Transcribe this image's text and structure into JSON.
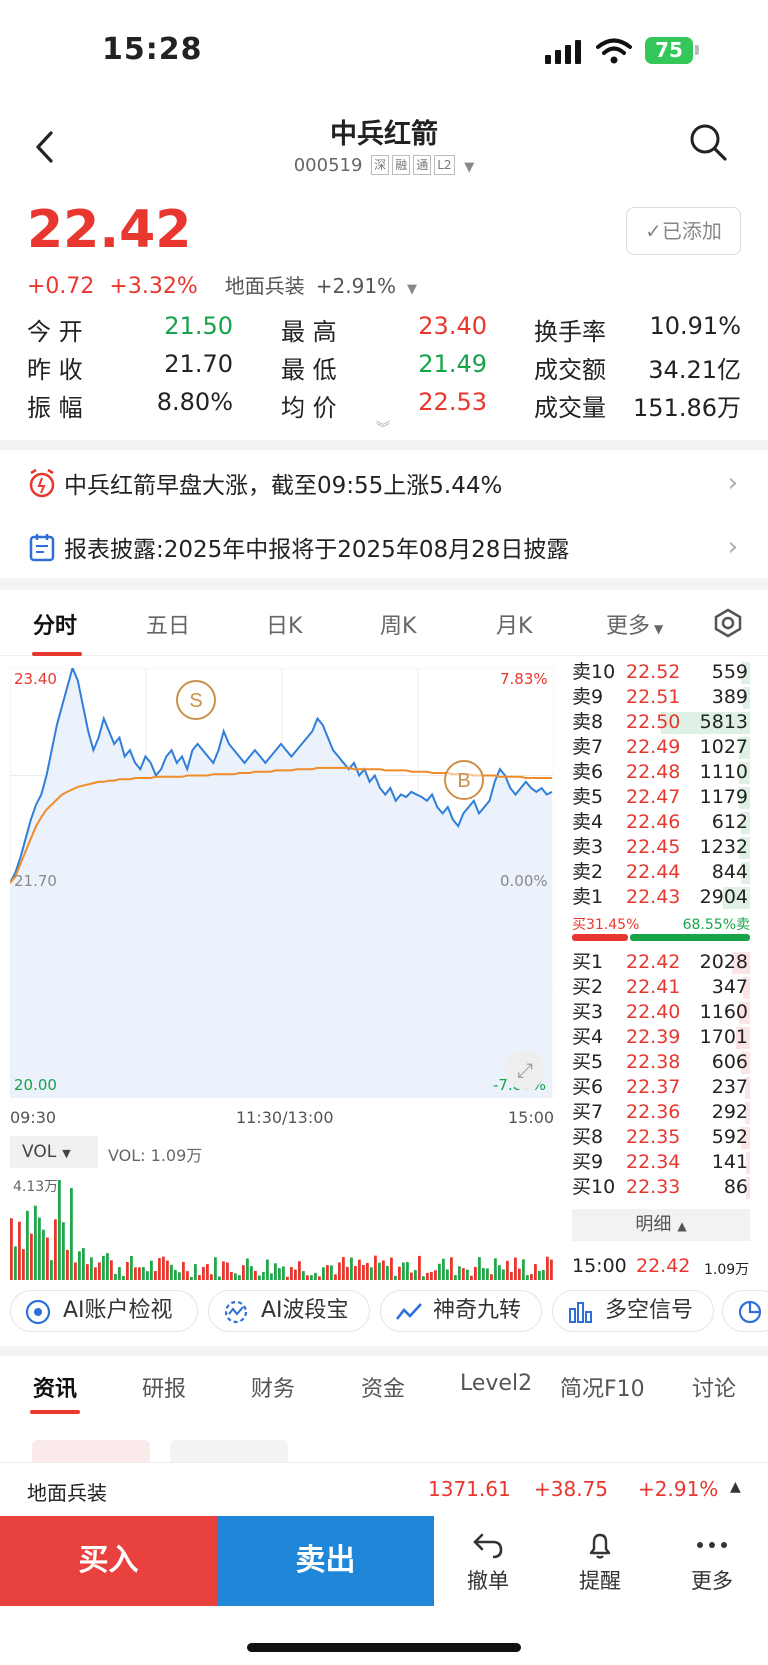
{
  "status_bar": {
    "time": "15:28",
    "battery": "75"
  },
  "header": {
    "back_icon": "chevron-left-icon",
    "title": "中兵红箭",
    "code": "000519",
    "tags": [
      "深",
      "融",
      "通",
      "L2"
    ],
    "search_icon": "search-icon"
  },
  "quote": {
    "price": "22.42",
    "change": "+0.72",
    "change_pct": "+3.32%",
    "sector": "地面兵装",
    "sector_pct": "+2.91%",
    "added_label": "已添加"
  },
  "stats": [
    {
      "label": "今 开",
      "value": "21.50",
      "color": "green"
    },
    {
      "label": "最 高",
      "value": "23.40",
      "color": "red"
    },
    {
      "label": "换手率",
      "value": "10.91%",
      "color": "black"
    },
    {
      "label": "昨 收",
      "value": "21.70",
      "color": "black"
    },
    {
      "label": "最 低",
      "value": "21.49",
      "color": "green"
    },
    {
      "label": "成交额",
      "value": "34.21亿",
      "color": "black"
    },
    {
      "label": "振 幅",
      "value": "8.80%",
      "color": "black"
    },
    {
      "label": "均 价",
      "value": "22.53",
      "color": "red"
    },
    {
      "label": "成交量",
      "value": "151.86万",
      "color": "black"
    }
  ],
  "notices": [
    {
      "text": "中兵红箭早盘大涨，截至09:55上涨5.44%",
      "icon": "alarm-icon"
    },
    {
      "text": "报表披露:2025年中报将于2025年08月28日披露",
      "icon": "calendar-icon"
    }
  ],
  "chart_tabs": [
    "分时",
    "五日",
    "日K",
    "周K",
    "月K",
    "更多"
  ],
  "chart_tab_active": 0,
  "chart_data": {
    "type": "line",
    "price_axis": {
      "high": "23.40",
      "mid": "21.70",
      "low": "20.00",
      "high_pct": "7.83%",
      "mid_pct": "0.00%",
      "low_pct": "-7.83%",
      "ylim": [
        20.0,
        23.4
      ]
    },
    "time_labels": [
      "09:30",
      "11:30/13:00",
      "15:00"
    ],
    "series": [
      {
        "values": [
          21.7,
          21.78,
          21.9,
          22.05,
          22.2,
          22.32,
          22.4,
          22.55,
          22.75,
          22.95,
          23.1,
          23.25,
          23.4,
          23.3,
          23.1,
          22.9,
          22.75,
          22.85,
          23.0,
          22.9,
          22.8,
          22.85,
          22.7,
          22.75,
          22.65,
          22.6,
          22.7,
          22.65,
          22.55,
          22.6,
          22.7,
          22.75,
          22.65,
          22.7,
          22.6,
          22.75,
          22.8,
          22.75,
          22.7,
          22.65,
          22.75,
          22.9,
          22.8,
          22.75,
          22.7,
          22.65,
          22.7,
          22.75,
          22.7,
          22.65,
          22.7,
          22.75,
          22.8,
          22.75,
          22.7,
          22.75,
          22.8,
          22.85,
          22.9,
          23.0,
          22.95,
          22.85,
          22.75,
          22.7,
          22.65,
          22.6,
          22.65,
          22.55,
          22.6,
          22.5,
          22.55,
          22.45,
          22.4,
          22.45,
          22.35,
          22.4,
          22.38,
          22.42,
          22.4,
          22.38,
          22.35,
          22.4,
          22.3,
          22.25,
          22.3,
          22.2,
          22.15,
          22.25,
          22.3,
          22.35,
          22.25,
          22.3,
          22.35,
          22.5,
          22.6,
          22.55,
          22.45,
          22.4,
          22.45,
          22.5,
          22.45,
          22.42,
          22.45,
          22.4,
          22.42
        ]
      },
      {
        "values": [
          21.7,
          21.75,
          21.85,
          21.95,
          22.05,
          22.15,
          22.22,
          22.28,
          22.32,
          22.36,
          22.4,
          22.42,
          22.44,
          22.46,
          22.47,
          22.48,
          22.49,
          22.5,
          22.5,
          22.51,
          22.51,
          22.52,
          22.52,
          22.52,
          22.53,
          22.53,
          22.53,
          22.53,
          22.54,
          22.54,
          22.54,
          22.54,
          22.54,
          22.54,
          22.55,
          22.55,
          22.55,
          22.55,
          22.55,
          22.56,
          22.56,
          22.56,
          22.56,
          22.56,
          22.57,
          22.57,
          22.57,
          22.58,
          22.58,
          22.58,
          22.58,
          22.59,
          22.59,
          22.59,
          22.59,
          22.6,
          22.6,
          22.6,
          22.6,
          22.61,
          22.61,
          22.61,
          22.61,
          22.61,
          22.61,
          22.61,
          22.6,
          22.6,
          22.6,
          22.6,
          22.6,
          22.6,
          22.59,
          22.59,
          22.59,
          22.59,
          22.59,
          22.58,
          22.58,
          22.58,
          22.58,
          22.57,
          22.57,
          22.57,
          22.57,
          22.56,
          22.56,
          22.56,
          22.56,
          22.55,
          22.55,
          22.55,
          22.55,
          22.55,
          22.54,
          22.54,
          22.54,
          22.54,
          22.54,
          22.53,
          22.53,
          22.53,
          22.53,
          22.53,
          22.53
        ]
      }
    ],
    "markers": [
      {
        "label": "S"
      },
      {
        "label": "B"
      }
    ],
    "volume": {
      "selector": "VOL",
      "label": "VOL: 1.09万",
      "max": "4.13万"
    }
  },
  "orderbook": {
    "sell": [
      {
        "label": "卖10",
        "price": "22.52",
        "vol": "559",
        "bar": 0.05
      },
      {
        "label": "卖9",
        "price": "22.51",
        "vol": "389",
        "bar": 0.04
      },
      {
        "label": "卖8",
        "price": "22.50",
        "vol": "5813",
        "bar": 0.5
      },
      {
        "label": "卖7",
        "price": "22.49",
        "vol": "1027",
        "bar": 0.06
      },
      {
        "label": "卖6",
        "price": "22.48",
        "vol": "1110",
        "bar": 0.06
      },
      {
        "label": "卖5",
        "price": "22.47",
        "vol": "1179",
        "bar": 0.06
      },
      {
        "label": "卖4",
        "price": "22.46",
        "vol": "612",
        "bar": 0.05
      },
      {
        "label": "卖3",
        "price": "22.45",
        "vol": "1232",
        "bar": 0.06
      },
      {
        "label": "卖2",
        "price": "22.44",
        "vol": "844",
        "bar": 0.05
      },
      {
        "label": "卖1",
        "price": "22.43",
        "vol": "2904",
        "bar": 0.15
      }
    ],
    "ratio": {
      "buy": "买31.45%",
      "sell": "68.55%卖",
      "buy_frac": 0.3145
    },
    "buy": [
      {
        "label": "买1",
        "price": "22.42",
        "vol": "2028",
        "bar": 0.1
      },
      {
        "label": "买2",
        "price": "22.41",
        "vol": "347",
        "bar": 0.04
      },
      {
        "label": "买3",
        "price": "22.40",
        "vol": "1160",
        "bar": 0.06
      },
      {
        "label": "买4",
        "price": "22.39",
        "vol": "1701",
        "bar": 0.08
      },
      {
        "label": "买5",
        "price": "22.38",
        "vol": "606",
        "bar": 0.05
      },
      {
        "label": "买6",
        "price": "22.37",
        "vol": "237",
        "bar": 0.03
      },
      {
        "label": "买7",
        "price": "22.36",
        "vol": "292",
        "bar": 0.03
      },
      {
        "label": "买8",
        "price": "22.35",
        "vol": "592",
        "bar": 0.05
      },
      {
        "label": "买9",
        "price": "22.34",
        "vol": "141",
        "bar": 0.02
      },
      {
        "label": "买10",
        "price": "22.33",
        "vol": "86",
        "bar": 0.02
      }
    ],
    "detail_label": "明细",
    "last_trade": {
      "time": "15:00",
      "price": "22.42",
      "vol": "1.09万"
    }
  },
  "ai_tools": [
    {
      "label": "AI账户检视",
      "icon": "eye-scan-icon"
    },
    {
      "label": "AI波段宝",
      "icon": "wave-icon"
    },
    {
      "label": "神奇九转",
      "icon": "trend-line-icon"
    },
    {
      "label": "多空信号",
      "icon": "bar-chart-icon"
    }
  ],
  "feature_tabs": [
    "资讯",
    "研报",
    "财务",
    "资金",
    "Level2",
    "简况F10",
    "讨论"
  ],
  "sector_bar": {
    "name": "地面兵装",
    "index": "1371.61",
    "change": "+38.75",
    "pct": "+2.91%"
  },
  "bottom_nav": {
    "buy": "买入",
    "sell": "卖出",
    "items": [
      {
        "label": "撤单",
        "icon": "undo-icon"
      },
      {
        "label": "提醒",
        "icon": "bell-icon"
      },
      {
        "label": "更多",
        "icon": "more-icon"
      }
    ]
  },
  "colors": {
    "red": "#e8372e",
    "green": "#16a34a",
    "blue": "#1f86d8",
    "line": "#2f7ed8",
    "avg": "#f08c2a"
  }
}
